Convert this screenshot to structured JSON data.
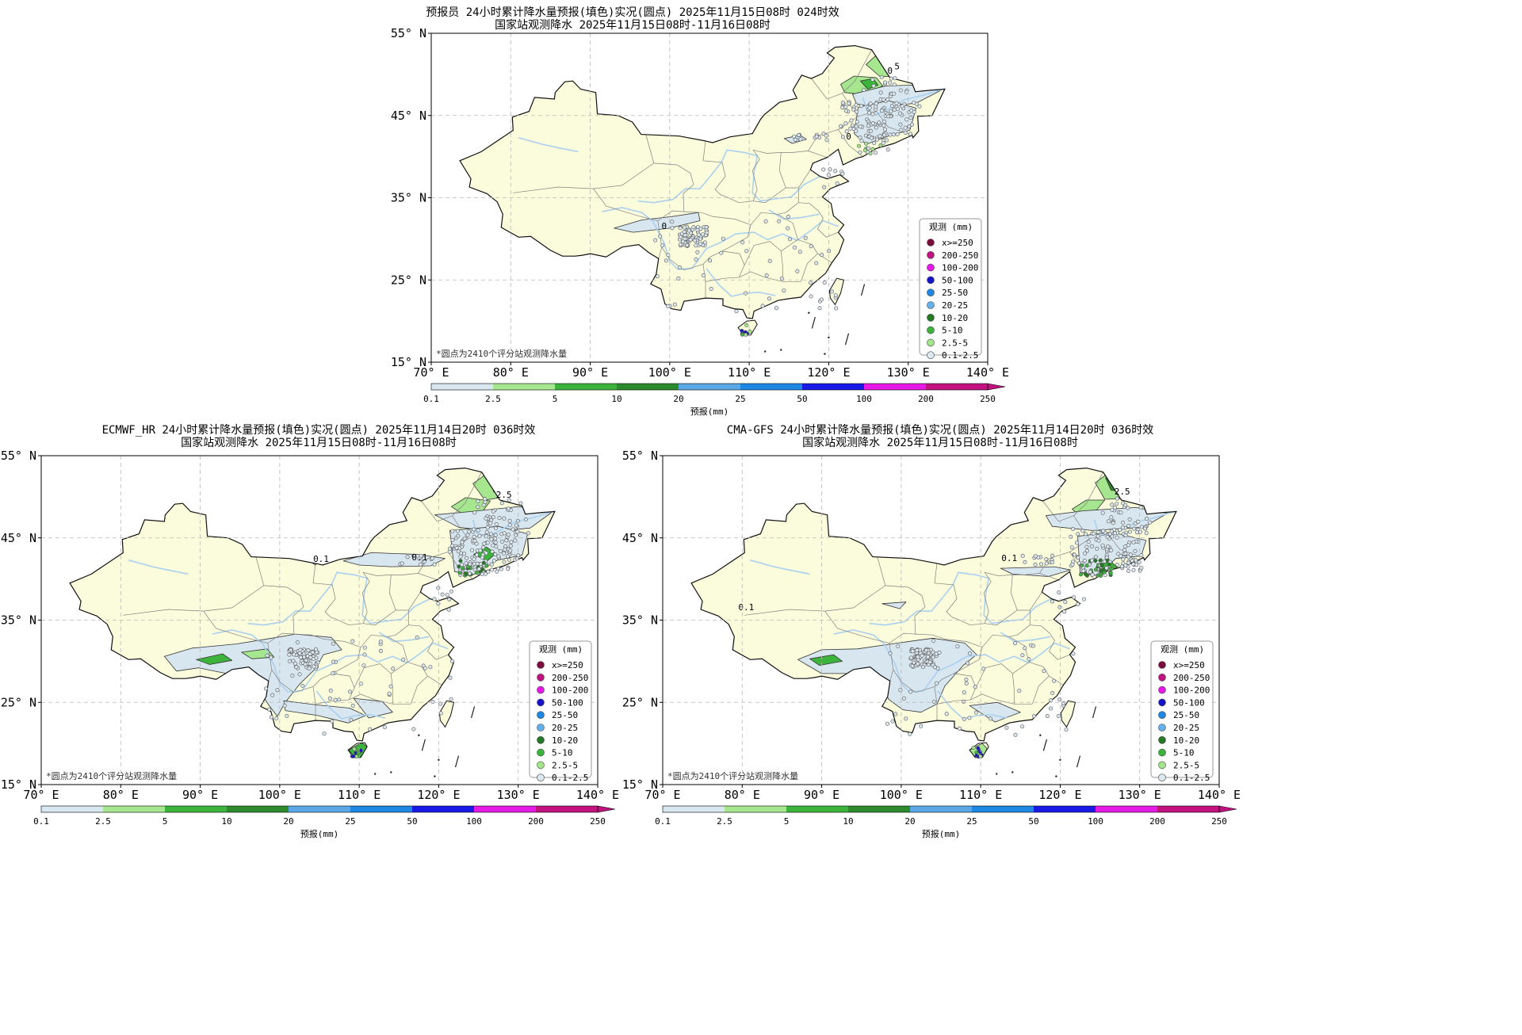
{
  "colors": {
    "ocean": "#ffffff",
    "land": "#fbfcdb",
    "region_line": "#808080",
    "river": "#aad0f0",
    "grid": "#b8b8b8"
  },
  "legend": {
    "title": "观测 (mm)",
    "items": [
      {
        "label": "x>=250",
        "color": "#7b0a3f"
      },
      {
        "label": "200-250",
        "color": "#c2127f"
      },
      {
        "label": "100-200",
        "color": "#e619e6"
      },
      {
        "label": "50-100",
        "color": "#1414c8"
      },
      {
        "label": "25-50",
        "color": "#1e88e5"
      },
      {
        "label": "20-25",
        "color": "#64b0ec"
      },
      {
        "label": "10-20",
        "color": "#237a23"
      },
      {
        "label": "5-10",
        "color": "#3cb43c"
      },
      {
        "label": "2.5-5",
        "color": "#a2e68a"
      },
      {
        "label": "0.1-2.5",
        "color": "#dce8f0"
      }
    ]
  },
  "colorbar": {
    "label": "预报(mm)",
    "ticks": [
      "0.1",
      "2.5",
      "5",
      "10",
      "20",
      "25",
      "50",
      "100",
      "200",
      "250"
    ],
    "colors": [
      "#d8e6f0",
      "#a6e68f",
      "#3cb43c",
      "#2d8a2d",
      "#5aa8e6",
      "#1e88e5",
      "#1a1ae6",
      "#e619e6",
      "#c2127f"
    ]
  },
  "axes": {
    "lon_ticks": [
      "70° E",
      "80° E",
      "90° E",
      "100° E",
      "110° E",
      "120° E",
      "130° E",
      "140° E"
    ],
    "lat_ticks": [
      "55° N",
      "45° N",
      "35° N",
      "25° N",
      "15° N"
    ]
  },
  "footnote": "*圆点为2410个评分站观测降水量",
  "panels": [
    {
      "title": "预报员 24小时累计降水量预报(填色)实况(圆点) 2025年11月15日08时 024时效",
      "subtitle": "国家站观测降水 2025年11月15日08时-11月16日08时",
      "contour_labels": [
        "5",
        "0",
        "0",
        "0"
      ]
    },
    {
      "title": "ECMWF_HR 24小时累计降水量预报(填色)实况(圆点) 2025年11月14日20时 036时效",
      "subtitle": "国家站观测降水 2025年11月15日08时-11月16日08时",
      "contour_labels": [
        "0.1",
        "2.5",
        "0.1"
      ]
    },
    {
      "title": "CMA-GFS 24小时累计降水量预报(填色)实况(圆点) 2025年11月14日20时 036时效",
      "subtitle": "国家站观测降水 2025年11月15日08时-11月16日08时",
      "contour_labels": [
        "2.5",
        "0.1",
        "0.1"
      ]
    }
  ]
}
